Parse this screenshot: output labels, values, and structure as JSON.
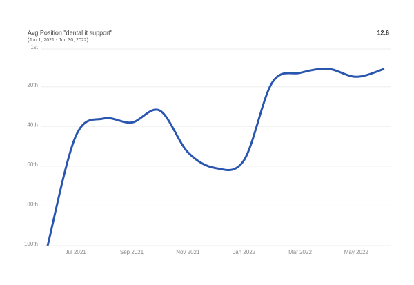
{
  "chart_data": {
    "type": "line",
    "title": "Avg Position \"dental it support\"",
    "subtitle": "(Jun 1, 2021 - Jun 30, 2022)",
    "headline": "12.6",
    "categories": [
      null,
      "Jul 2021",
      null,
      "Sep 2021",
      null,
      "Nov 2021",
      null,
      "Jan 2022",
      null,
      "Mar 2022",
      null,
      "May 2022",
      null
    ],
    "series": [
      {
        "name": "Avg Position",
        "color": "#2a56b0",
        "values": [
          100,
          45,
          36,
          38,
          32,
          53,
          61,
          57,
          18,
          13,
          11,
          15,
          11
        ]
      }
    ],
    "ylim": [
      100,
      1
    ],
    "yticks": [
      {
        "value": 1,
        "label": "1st"
      },
      {
        "value": 20,
        "label": "20th"
      },
      {
        "value": 40,
        "label": "40th"
      },
      {
        "value": 60,
        "label": "60th"
      },
      {
        "value": 80,
        "label": "80th"
      },
      {
        "value": 100,
        "label": "100th"
      }
    ],
    "grid": true
  }
}
